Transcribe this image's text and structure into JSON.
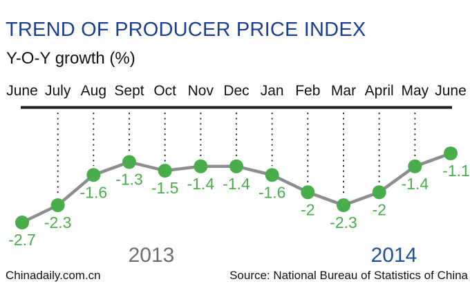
{
  "header": {
    "title": "TREND OF PRODUCER PRICE INDEX",
    "subtitle": "Y-O-Y growth (%)"
  },
  "chart_data": {
    "type": "line",
    "title": "TREND OF PRODUCER PRICE INDEX",
    "ylabel": "Y-O-Y growth (%)",
    "categories": [
      "June",
      "July",
      "Aug",
      "Sept",
      "Oct",
      "Nov",
      "Dec",
      "Jan",
      "Feb",
      "Mar",
      "April",
      "May",
      "June"
    ],
    "series": [
      {
        "name": "Producer Price Index Y-O-Y growth (%)",
        "values": [
          -2.7,
          -2.3,
          -1.6,
          -1.3,
          -1.5,
          -1.4,
          -1.4,
          -1.6,
          -2,
          -2.3,
          -2,
          -1.4,
          -1.1
        ]
      }
    ],
    "point_labels": [
      "-2.7",
      "-2.3",
      "-1.6",
      "-1.3",
      "-1.5",
      "-1.4",
      "-1.4",
      "-1.6",
      "-2",
      "-2.3",
      "-2",
      "-1.4",
      "-1.1"
    ],
    "year_annotations": [
      {
        "text": "2013",
        "color": "#6e6e6e"
      },
      {
        "text": "2014",
        "color": "#1d4f9b"
      }
    ],
    "ylim": [
      -3,
      -1
    ],
    "grid": "dotted-vertical-guides",
    "legend": "none"
  },
  "footer": {
    "watermark": "Chinadaily.com.cn",
    "source": "Source: National Bureau of Statistics of China"
  },
  "colors": {
    "title": "#1b3e91",
    "accent_green": "#4aad4b",
    "line_gray": "#8d8d8d",
    "axis_black": "#1f1f1f",
    "grid_dotted": "#2b2b2b",
    "text_black": "#111111",
    "year_2013": "#6e6e6e",
    "year_2014": "#1d4f9b",
    "background": "#ffffff"
  }
}
